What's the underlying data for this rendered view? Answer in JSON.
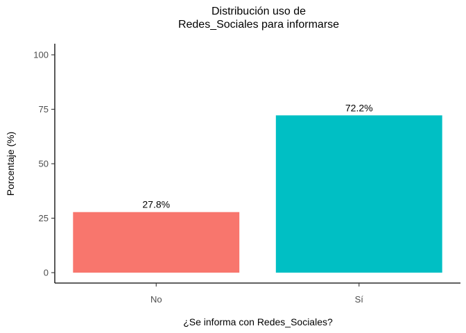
{
  "chart_data": {
    "type": "bar",
    "title_lines": [
      "Distribución uso de",
      "Redes_Sociales para informarse"
    ],
    "xlabel": "¿Se informa con Redes_Sociales?",
    "ylabel": "Porcentaje (%)",
    "categories": [
      "No",
      "Sí"
    ],
    "values": [
      27.8,
      72.2
    ],
    "value_labels": [
      "27.8%",
      "72.2%"
    ],
    "colors": [
      "#F8766D",
      "#00BFC4"
    ],
    "ylim": [
      0,
      100
    ],
    "yticks": [
      "0",
      "25",
      "50",
      "75",
      "100"
    ],
    "grid": false,
    "legend": "none"
  }
}
